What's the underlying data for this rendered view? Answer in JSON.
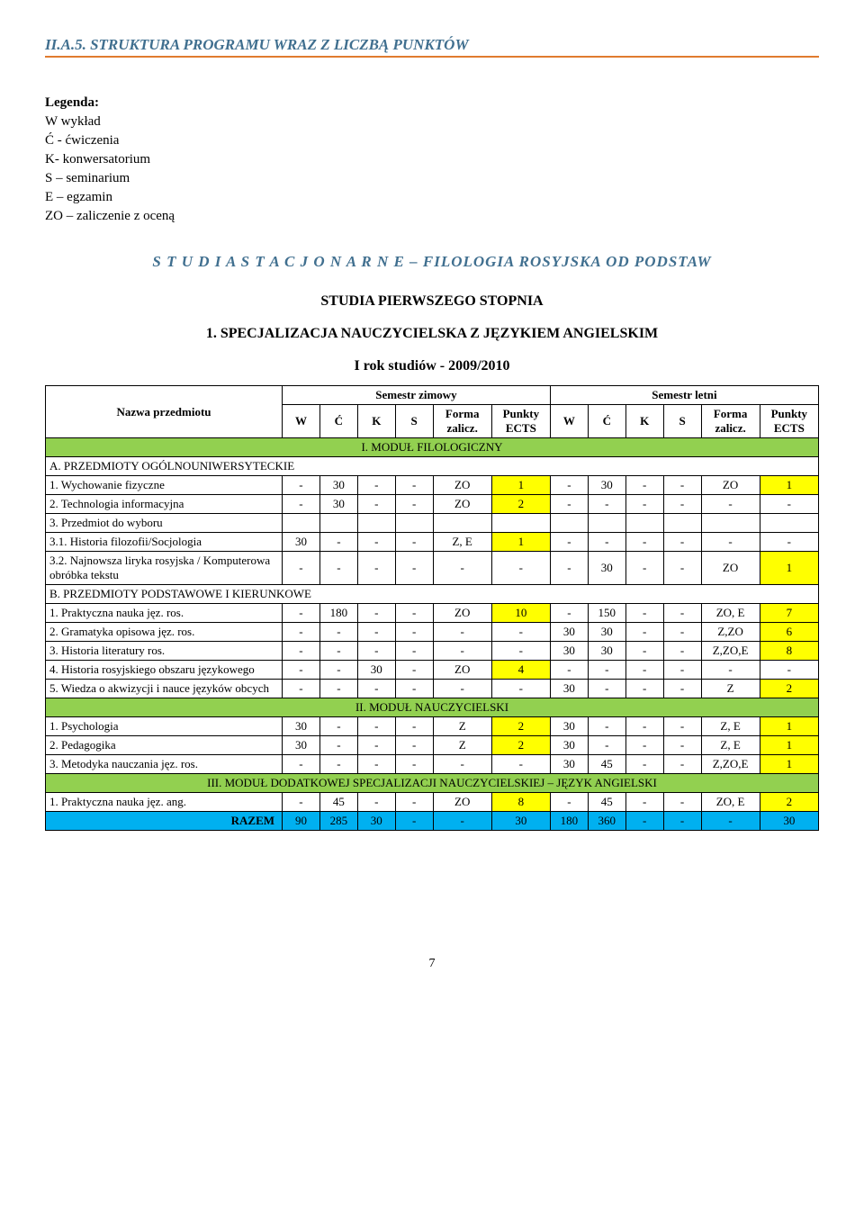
{
  "heading": "II.A.5. STRUKTURA PROGRAMU WRAZ Z LICZBĄ PUNKTÓW",
  "legend": {
    "label": "Legenda:",
    "lines": [
      "W wykład",
      "Ć - ćwiczenia",
      "K- konwersatorium",
      "S – seminarium",
      "E – egzamin",
      "ZO – zaliczenie z oceną"
    ]
  },
  "studies_title": "S T U D I A   S T A C J O N A R N E – FILOLOGIA ROSYJSKA OD PODSTAW",
  "sub1": "STUDIA PIERWSZEGO STOPNIA",
  "sub2": "1. SPECJALIZACJA NAUCZYCIELSKA Z JĘZYKIEM ANGIELSKIM",
  "sub3": "I rok studiów - 2009/2010",
  "col_widths": [
    "226",
    "36",
    "36",
    "36",
    "36",
    "56",
    "56",
    "36",
    "36",
    "36",
    "36",
    "56",
    "56"
  ],
  "header1": {
    "name": "Nazwa przedmiotu",
    "group_winter": "Semestr zimowy",
    "group_summer": "Semestr letni"
  },
  "header2": [
    "W",
    "Ć",
    "K",
    "S",
    "Forma zalicz.",
    "Punkty ECTS",
    "W",
    "Ć",
    "K",
    "S",
    "Forma zalicz.",
    "Punkty ECTS"
  ],
  "sections": {
    "mod1": "I. MODUŁ FILOLOGICZNY",
    "secA": "A. PRZEDMIOTY OGÓLNOUNIWERSYTECKIE",
    "secB": "B. PRZEDMIOTY PODSTAWOWE I KIERUNKOWE",
    "mod2": "II. MODUŁ NAUCZYCIELSKI",
    "mod3": "III. MODUŁ DODATKOWEJ SPECJALIZACJI NAUCZYCIELSKIEJ – JĘZYK ANGIELSKI"
  },
  "rowsA": [
    {
      "name": "1. Wychowanie fizyczne",
      "c": [
        "-",
        "30",
        "-",
        "-",
        "ZO",
        "1",
        "-",
        "30",
        "-",
        "-",
        "ZO",
        "1"
      ],
      "hl": [
        5,
        11
      ]
    },
    {
      "name": "2. Technologia informacyjna",
      "c": [
        "-",
        "30",
        "-",
        "-",
        "ZO",
        "2",
        "-",
        "-",
        "-",
        "-",
        "-",
        "-"
      ],
      "hl": [
        5
      ]
    },
    {
      "name": "3. Przedmiot do wyboru",
      "c": [
        "",
        "",
        "",
        "",
        "",
        "",
        "",
        "",
        "",
        "",
        "",
        ""
      ],
      "hl": []
    },
    {
      "name": "3.1. Historia filozofii/Socjologia",
      "c": [
        "30",
        "-",
        "-",
        "-",
        "Z, E",
        "1",
        "-",
        "-",
        "-",
        "-",
        "-",
        "-"
      ],
      "hl": [
        5
      ]
    },
    {
      "name": "3.2. Najnowsza liryka rosyjska / Komputerowa obróbka tekstu",
      "c": [
        "-",
        "-",
        "-",
        "-",
        "-",
        "-",
        "-",
        "30",
        "-",
        "-",
        "ZO",
        "1"
      ],
      "hl": [
        11
      ]
    }
  ],
  "rowsB": [
    {
      "name": "1. Praktyczna nauka jęz. ros.",
      "c": [
        "-",
        "180",
        "-",
        "-",
        "ZO",
        "10",
        "-",
        "150",
        "-",
        "-",
        "ZO, E",
        "7"
      ],
      "hl": [
        5,
        11
      ]
    },
    {
      "name": "2. Gramatyka opisowa jęz. ros.",
      "c": [
        "-",
        "-",
        "-",
        "-",
        "-",
        "-",
        "30",
        "30",
        "-",
        "-",
        "Z,ZO",
        "6"
      ],
      "hl": [
        11
      ]
    },
    {
      "name": "3. Historia literatury ros.",
      "c": [
        "-",
        "-",
        "-",
        "-",
        "-",
        "-",
        "30",
        "30",
        "-",
        "-",
        "Z,ZO,E",
        "8"
      ],
      "hl": [
        11
      ]
    },
    {
      "name": "4. Historia rosyjskiego obszaru językowego",
      "c": [
        "-",
        "-",
        "30",
        "-",
        "ZO",
        "4",
        "-",
        "-",
        "-",
        "-",
        "-",
        "-"
      ],
      "hl": [
        5
      ]
    },
    {
      "name": "5. Wiedza o akwizycji i nauce języków obcych",
      "c": [
        "-",
        "-",
        "-",
        "-",
        "-",
        "-",
        "30",
        "-",
        "-",
        "-",
        "Z",
        "2"
      ],
      "hl": [
        11
      ]
    }
  ],
  "rowsM2": [
    {
      "name": "1. Psychologia",
      "c": [
        "30",
        "-",
        "-",
        "-",
        "Z",
        "2",
        "30",
        "-",
        "-",
        "-",
        "Z, E",
        "1"
      ],
      "hl": [
        5,
        11
      ]
    },
    {
      "name": "2. Pedagogika",
      "c": [
        "30",
        "-",
        "-",
        "-",
        "Z",
        "2",
        "30",
        "-",
        "-",
        "-",
        "Z, E",
        "1"
      ],
      "hl": [
        5,
        11
      ]
    },
    {
      "name": "3. Metodyka nauczania jęz. ros.",
      "c": [
        "-",
        "-",
        "-",
        "-",
        "-",
        "-",
        "30",
        "45",
        "-",
        "-",
        "Z,ZO,E",
        "1"
      ],
      "hl": [
        11
      ]
    }
  ],
  "rowsM3": [
    {
      "name": "1. Praktyczna nauka jęz. ang.",
      "c": [
        "-",
        "45",
        "-",
        "-",
        "ZO",
        "8",
        "-",
        "45",
        "-",
        "-",
        "ZO, E",
        "2"
      ],
      "hl": [
        5,
        11
      ]
    }
  ],
  "razem": {
    "label": "RAZEM",
    "c": [
      "90",
      "285",
      "30",
      "-",
      "-",
      "30",
      "180",
      "360",
      "-",
      "-",
      "-",
      "30"
    ]
  },
  "page_num": "7"
}
